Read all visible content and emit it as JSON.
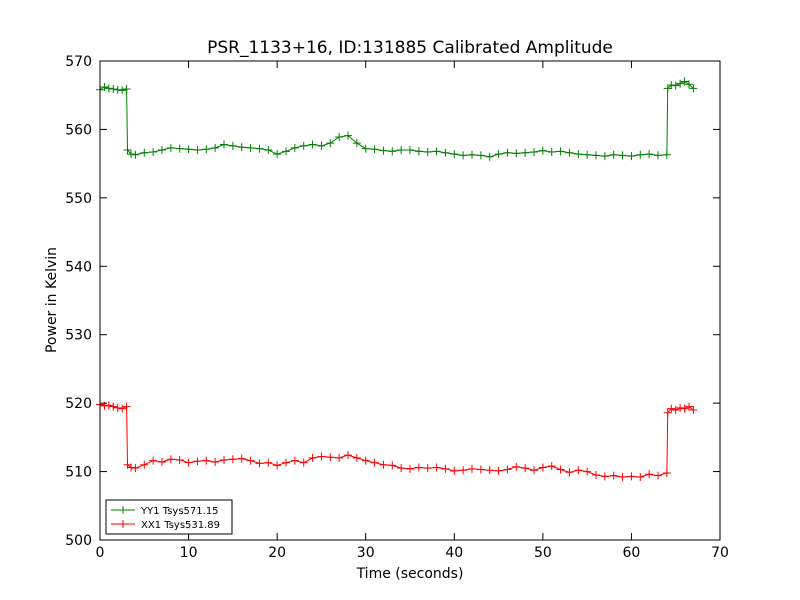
{
  "chart_data": {
    "type": "line",
    "title": "PSR_1133+16, ID:131885 Calibrated Amplitude",
    "xlabel": "Time (seconds)",
    "ylabel": "Power in Kelvin",
    "xlim": [
      0,
      70
    ],
    "ylim": [
      500,
      570
    ],
    "xticks": [
      "0",
      "10",
      "20",
      "30",
      "40",
      "50",
      "60",
      "70"
    ],
    "yticks": [
      "500",
      "510",
      "520",
      "530",
      "540",
      "550",
      "560",
      "570"
    ],
    "grid": false,
    "legend_position": "lower-left",
    "marker": "+",
    "series": [
      {
        "name": "YY1 Tsys571.15",
        "color": "#008000",
        "x": [
          0,
          0.5,
          1,
          1.5,
          2,
          2.5,
          3,
          3.1,
          3.5,
          4,
          5,
          6,
          7,
          8,
          9,
          10,
          11,
          12,
          13,
          14,
          15,
          16,
          17,
          18,
          19,
          20,
          21,
          22,
          23,
          24,
          25,
          26,
          27,
          28,
          29,
          30,
          31,
          32,
          33,
          34,
          35,
          36,
          37,
          38,
          39,
          40,
          41,
          42,
          43,
          44,
          45,
          46,
          47,
          48,
          49,
          50,
          51,
          52,
          53,
          54,
          55,
          56,
          57,
          58,
          59,
          60,
          61,
          62,
          63,
          64,
          64.1,
          64.5,
          65,
          65.5,
          66,
          66.5,
          67
        ],
        "y": [
          565.8,
          566.2,
          566.0,
          565.9,
          565.8,
          565.7,
          565.9,
          557.0,
          556.4,
          556.3,
          556.6,
          556.7,
          557.0,
          557.3,
          557.2,
          557.1,
          557.0,
          557.1,
          557.3,
          557.8,
          557.6,
          557.4,
          557.3,
          557.2,
          557.0,
          556.4,
          556.8,
          557.3,
          557.6,
          557.8,
          557.6,
          558.0,
          558.9,
          559.1,
          558.0,
          557.2,
          557.1,
          556.9,
          556.8,
          557.0,
          557.0,
          556.8,
          556.7,
          556.8,
          556.6,
          556.4,
          556.2,
          556.3,
          556.2,
          556.0,
          556.4,
          556.6,
          556.5,
          556.6,
          556.7,
          556.9,
          556.7,
          556.8,
          556.6,
          556.4,
          556.3,
          556.2,
          556.1,
          556.3,
          556.2,
          556.1,
          556.3,
          556.4,
          556.2,
          556.3,
          566.0,
          566.5,
          566.4,
          566.7,
          567.0,
          566.6,
          566.0
        ]
      },
      {
        "name": "XX1 Tsys531.89",
        "color": "#ff0000",
        "x": [
          0,
          0.5,
          1,
          1.5,
          2,
          2.5,
          3,
          3.1,
          3.5,
          4,
          5,
          6,
          7,
          8,
          9,
          10,
          11,
          12,
          13,
          14,
          15,
          16,
          17,
          18,
          19,
          20,
          21,
          22,
          23,
          24,
          25,
          26,
          27,
          28,
          29,
          30,
          31,
          32,
          33,
          34,
          35,
          36,
          37,
          38,
          39,
          40,
          41,
          42,
          43,
          44,
          45,
          46,
          47,
          48,
          49,
          50,
          51,
          52,
          53,
          54,
          55,
          56,
          57,
          58,
          59,
          60,
          61,
          62,
          63,
          64,
          64.1,
          64.5,
          65,
          65.5,
          66,
          66.5,
          67
        ],
        "y": [
          519.8,
          519.6,
          519.7,
          519.5,
          519.3,
          519.2,
          519.5,
          511.0,
          510.6,
          510.5,
          511.0,
          511.6,
          511.4,
          511.8,
          511.7,
          511.3,
          511.5,
          511.6,
          511.4,
          511.7,
          511.8,
          511.9,
          511.6,
          511.2,
          511.3,
          510.9,
          511.3,
          511.6,
          511.3,
          512.0,
          512.2,
          512.1,
          512.0,
          512.4,
          512.0,
          511.6,
          511.3,
          511.0,
          510.9,
          510.5,
          510.4,
          510.6,
          510.5,
          510.6,
          510.4,
          510.1,
          510.2,
          510.4,
          510.3,
          510.2,
          510.1,
          510.3,
          510.7,
          510.5,
          510.2,
          510.6,
          510.8,
          510.3,
          509.9,
          510.2,
          510.0,
          509.5,
          509.3,
          509.4,
          509.2,
          509.3,
          509.2,
          509.6,
          509.4,
          509.8,
          518.6,
          519.2,
          519.0,
          519.3,
          519.2,
          519.5,
          519.0
        ]
      }
    ]
  }
}
